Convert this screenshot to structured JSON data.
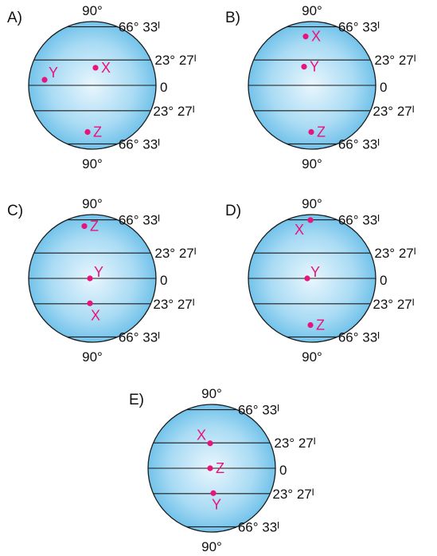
{
  "labels": {
    "north_pole": "90°",
    "south_pole": "90°",
    "lat_66": "66° 33ᴵ",
    "lat_23": "23° 27ᴵ",
    "equator": "0"
  },
  "colors": {
    "point": "#e8137b",
    "globe_center": "#e9f6fd",
    "globe_edge": "#62bbe7",
    "outline": "#1a1a1a"
  },
  "options": [
    {
      "letter": "A)",
      "points": [
        {
          "name": "Y",
          "lat": 5
        },
        {
          "name": "X",
          "lat": 16
        },
        {
          "name": "Z",
          "lat": -47
        }
      ]
    },
    {
      "letter": "B)",
      "points": [
        {
          "name": "X",
          "lat": 50
        },
        {
          "name": "Y",
          "lat": 17
        },
        {
          "name": "Z",
          "lat": -47
        }
      ]
    },
    {
      "letter": "C)",
      "points": [
        {
          "name": "Z",
          "lat": 55
        },
        {
          "name": "Y",
          "lat": 0
        },
        {
          "name": "X",
          "lat": -23
        }
      ]
    },
    {
      "letter": "D)",
      "points": [
        {
          "name": "X",
          "lat": 66
        },
        {
          "name": "Y",
          "lat": 0
        },
        {
          "name": "Z",
          "lat": -47
        }
      ]
    },
    {
      "letter": "E)",
      "points": [
        {
          "name": "X",
          "lat": 23
        },
        {
          "name": "Z",
          "lat": 0
        },
        {
          "name": "Y",
          "lat": -23
        }
      ]
    }
  ]
}
